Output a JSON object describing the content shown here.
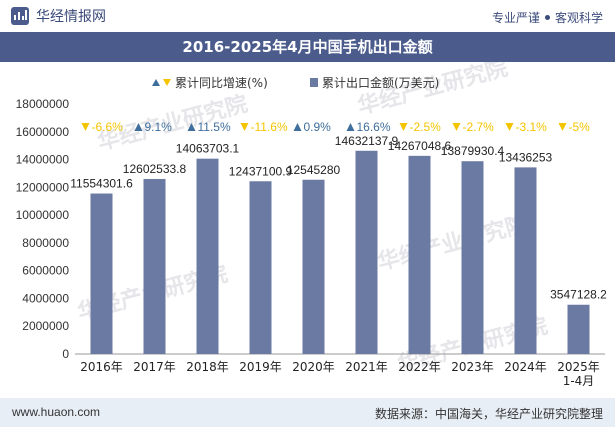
{
  "header": {
    "brand": "华经情报网",
    "tags": [
      "专业严谨",
      "客观科学"
    ]
  },
  "title": "2016-2025年4月中国手机出口金额",
  "footer": {
    "site": "www.huaon.com",
    "source": "数据来源：中国海关，华经产业研究院整理"
  },
  "watermark": "华经产业研究院",
  "colors": {
    "bar": "#6a7aa3",
    "up": "#3f6e9c",
    "down": "#f5c400",
    "header_band": "#4a5b8c",
    "footer_band": "#e8eef6"
  },
  "chart_data": {
    "type": "bar",
    "categories": [
      "2016年",
      "2017年",
      "2018年",
      "2019年",
      "2020年",
      "2021年",
      "2022年",
      "2023年",
      "2024年",
      "2025年\n1-4月"
    ],
    "legend": [
      "累计同比增速(%)",
      "累计出口金额(万美元)"
    ],
    "series": [
      {
        "name": "累计出口金额(万美元)",
        "values": [
          11554301.6,
          12602533.8,
          14063703.1,
          12437100.9,
          12545280,
          14632137.9,
          14267048.6,
          13879930.4,
          13436253,
          3547128.2
        ],
        "labels": [
          "11554301.6",
          "12602533.8",
          "14063703.1",
          "12437100.9",
          "12545280",
          "14632137.9",
          "14267048.6",
          "13879930.4",
          "13436253",
          "3547128.2"
        ]
      },
      {
        "name": "累计同比增速(%)",
        "values": [
          -6.6,
          9.1,
          11.5,
          -11.6,
          0.9,
          16.6,
          -2.5,
          -2.7,
          -3.1,
          -5
        ],
        "labels": [
          "-6.6%",
          "9.1%",
          "11.5%",
          "-11.6%",
          "0.9%",
          "16.6%",
          "-2.5%",
          "-2.7%",
          "-3.1%",
          "-5%"
        ]
      }
    ],
    "yticks": [
      "0",
      "2000000",
      "4000000",
      "6000000",
      "8000000",
      "10000000",
      "12000000",
      "14000000",
      "16000000",
      "18000000"
    ],
    "ylim": [
      0,
      18000000
    ],
    "legend_position": "top",
    "grid": false
  }
}
